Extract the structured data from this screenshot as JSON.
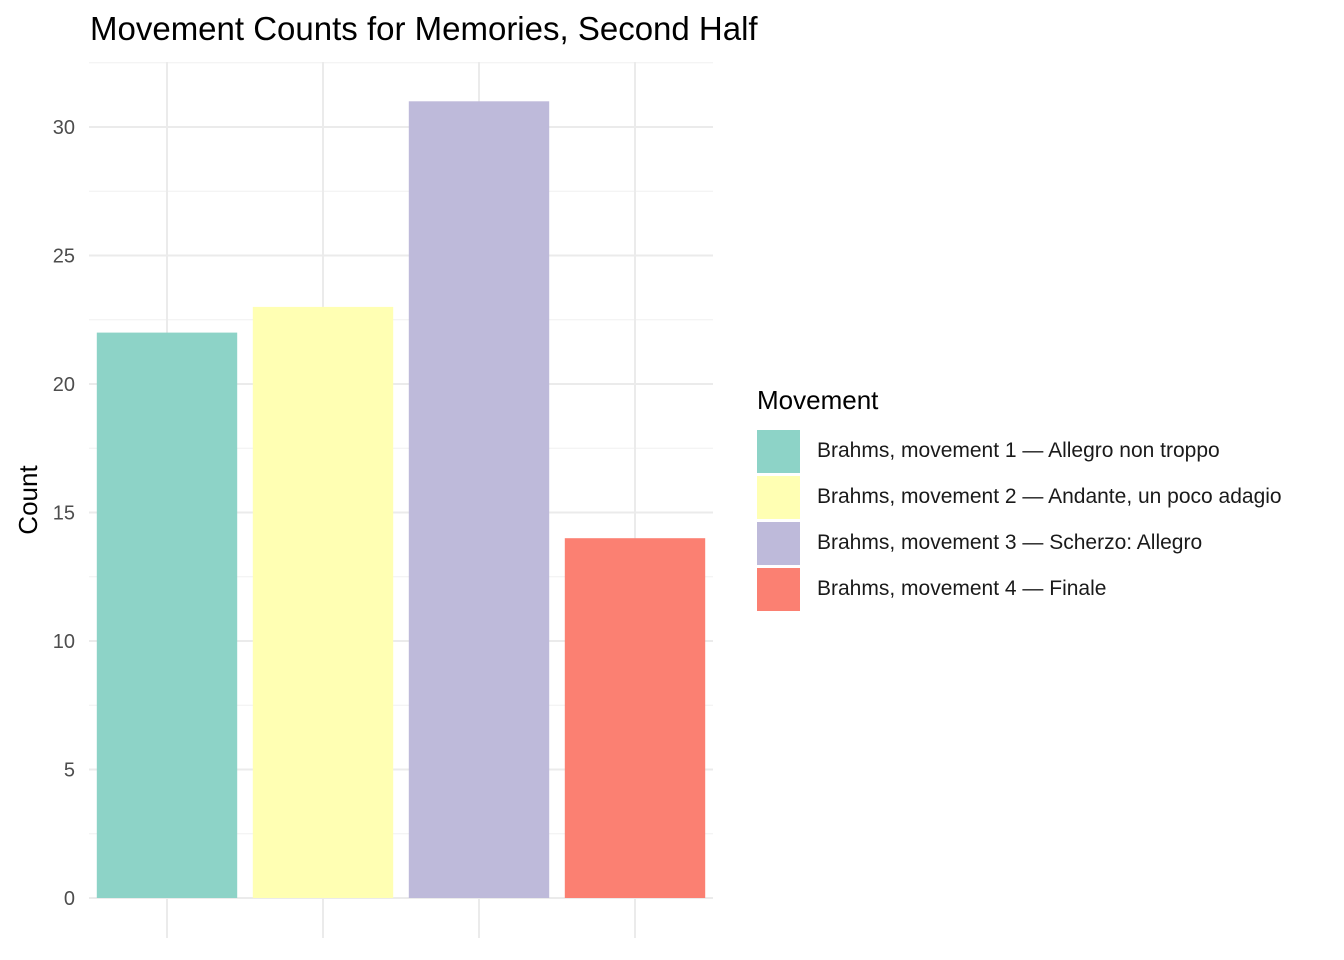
{
  "chart_data": {
    "type": "bar",
    "title": "Movement Counts for Memories, Second Half",
    "xlabel": "",
    "ylabel": "Count",
    "ylim": [
      0,
      32.5
    ],
    "yticks": [
      0,
      5,
      10,
      15,
      20,
      25,
      30
    ],
    "grid": true,
    "legend": {
      "title": "Movement",
      "position": "right"
    },
    "categories": [
      "Brahms, movement 1 — Allegro non troppo",
      "Brahms, movement 2 — Andante, un poco adagio",
      "Brahms, movement 3 — Scherzo: Allegro",
      "Brahms, movement 4 — Finale"
    ],
    "values": [
      22,
      23,
      31,
      14
    ],
    "colors": [
      "#8DD3C7",
      "#FFFFB3",
      "#BEBADA",
      "#FB8072"
    ]
  }
}
